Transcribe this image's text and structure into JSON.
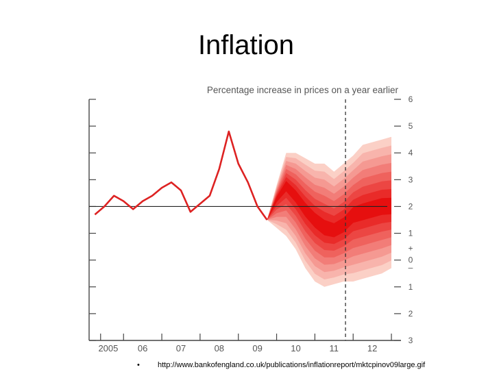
{
  "slide": {
    "title": "Inflation",
    "bullet": "•",
    "source_url": "http://www.bankofengland.co.uk/publications/inflationreport/mktcpinov09large.gif"
  },
  "chart_data": {
    "type": "area",
    "title": "Percentage increase in prices on a year earlier",
    "xlabel": "",
    "ylabel": "",
    "x_tick_labels": [
      "2005",
      "06",
      "07",
      "08",
      "09",
      "10",
      "11",
      "12"
    ],
    "y_tick_labels_right": [
      "6",
      "5",
      "4",
      "3",
      "2",
      "1",
      "+",
      "0",
      "–",
      "1",
      "2",
      "3"
    ],
    "ylim": [
      -3,
      6
    ],
    "xlim": [
      2004.6,
      2012.75
    ],
    "target_line": 2,
    "forecast_divider_x": 2011.3,
    "colors": {
      "history_line": "#dd2222",
      "fan_outer": "#fbd0c6",
      "fan_inner": "#e60f0f",
      "axis": "#333333"
    },
    "series": [
      {
        "x": [
          2004.75,
          2005.0,
          2005.25,
          2005.5,
          2005.75,
          2006.0,
          2006.25,
          2006.5,
          2006.75,
          2007.0,
          2007.25,
          2007.5,
          2007.75,
          2008.0,
          2008.25,
          2008.5,
          2008.75,
          2009.0,
          2009.25
        ],
        "values": [
          1.7,
          2.0,
          2.4,
          2.2,
          1.9,
          2.2,
          2.4,
          2.7,
          2.9,
          2.6,
          1.8,
          2.1,
          2.4,
          3.4,
          4.8,
          3.6,
          2.9,
          2.0,
          1.5
        ]
      }
    ],
    "fan": {
      "x": [
        2009.25,
        2009.5,
        2009.75,
        2010.0,
        2010.25,
        2010.5,
        2010.75,
        2011.0,
        2011.25,
        2011.5,
        2011.75,
        2012.0,
        2012.25,
        2012.5
      ],
      "median": [
        1.5,
        2.3,
        2.8,
        2.4,
        1.9,
        1.5,
        1.2,
        1.1,
        1.3,
        1.7,
        1.8,
        1.9,
        2.0,
        2.0
      ],
      "upper": [
        1.5,
        2.8,
        4.0,
        4.0,
        3.8,
        3.6,
        3.6,
        3.3,
        3.6,
        3.9,
        4.3,
        4.4,
        4.5,
        4.6
      ],
      "lower": [
        1.5,
        1.2,
        0.9,
        0.4,
        -0.3,
        -0.8,
        -1.0,
        -0.9,
        -0.8,
        -0.8,
        -0.7,
        -0.6,
        -0.5,
        -0.3
      ],
      "bands": 8
    }
  }
}
